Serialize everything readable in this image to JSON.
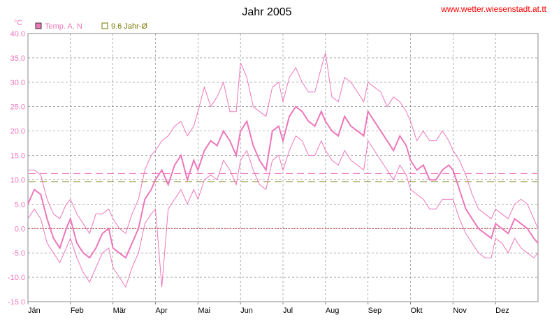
{
  "header": {
    "title": "Jahr 2005",
    "site": "www.wetter.wiesenstadt.at.tt"
  },
  "legend": [
    {
      "label": "Temp. A. N",
      "color": "#ee77bb",
      "swatch_fill": "#ee77bb"
    },
    {
      "label": "9.6 Jahr-Ø",
      "color": "#777700",
      "swatch_fill": "#ffffff"
    }
  ],
  "chart_data": {
    "type": "line",
    "title": "Jahr 2005",
    "ylabel": "°C",
    "xlabel": "",
    "ylim": [
      -15,
      40
    ],
    "yticks": [
      40.0,
      35.0,
      30.0,
      25.0,
      20.0,
      15.0,
      10.0,
      5.0,
      0.0,
      -5.0,
      -10.0,
      -15.0
    ],
    "ytick_labels": [
      "40.0",
      "35.0",
      "30.0",
      "25.0",
      "20.0",
      "15.0",
      "10.0",
      "5.0",
      "0.0",
      "-5.0",
      "-10.0",
      "-15.0"
    ],
    "months": [
      "Jän",
      "Feb",
      "Mär",
      "Apr",
      "Mai",
      "Jun",
      "Jul",
      "Aug",
      "Sep",
      "Okt",
      "Nov",
      "Dez"
    ],
    "grid": true,
    "legend_position": "top-left",
    "colors": {
      "series": "#ee77bb",
      "jahr_avg_line": "#777700",
      "upper_dash": "#ee77bb",
      "zero_line": "#bb3333",
      "grid": "#777777",
      "frame": "#888888"
    },
    "reference_lines": [
      {
        "name": "9.6 Jahr-Ø",
        "value": 9.6,
        "style": "dashed",
        "color": "#777700"
      },
      {
        "value": 11.3,
        "style": "dashed",
        "color": "#ee77bb"
      },
      {
        "value": 0.0,
        "style": "dotted",
        "color": "#bb3333"
      }
    ],
    "series": [
      {
        "name": "Temp. A. N",
        "color": "#ee77bb",
        "x_month": [
          0.0,
          0.15,
          0.3,
          0.45,
          0.6,
          0.75,
          0.9,
          1.0,
          1.15,
          1.3,
          1.45,
          1.6,
          1.75,
          1.9,
          2.0,
          2.15,
          2.3,
          2.45,
          2.6,
          2.75,
          2.9,
          3.0,
          3.15,
          3.3,
          3.45,
          3.6,
          3.75,
          3.9,
          4.0,
          4.15,
          4.3,
          4.45,
          4.6,
          4.75,
          4.9,
          5.0,
          5.15,
          5.3,
          5.45,
          5.6,
          5.75,
          5.9,
          6.0,
          6.15,
          6.3,
          6.45,
          6.6,
          6.75,
          6.9,
          7.0,
          7.15,
          7.3,
          7.45,
          7.6,
          7.75,
          7.9,
          8.0,
          8.15,
          8.3,
          8.45,
          8.6,
          8.75,
          8.9,
          9.0,
          9.15,
          9.3,
          9.45,
          9.6,
          9.75,
          9.9,
          10.0,
          10.15,
          10.3,
          10.45,
          10.6,
          10.75,
          10.9,
          11.0,
          11.15,
          11.3,
          11.45,
          11.6,
          11.75,
          11.9,
          12.0
        ],
        "mean": [
          5,
          8,
          7,
          2,
          -2,
          -4,
          0,
          2,
          -3,
          -5,
          -6,
          -4,
          -1,
          0,
          -4,
          -5,
          -6,
          -3,
          0,
          6,
          8,
          10,
          12,
          9,
          13,
          15,
          10,
          14,
          12,
          16,
          18,
          17,
          20,
          18,
          15,
          20,
          22,
          17,
          14,
          12,
          20,
          21,
          18,
          23,
          25,
          24,
          22,
          21,
          24,
          22,
          20,
          19,
          23,
          21,
          20,
          19,
          24,
          22,
          20,
          18,
          16,
          19,
          17,
          14,
          12,
          13,
          10,
          10,
          12,
          13,
          12,
          8,
          4,
          2,
          0,
          -1,
          -2,
          1,
          0,
          -1,
          2,
          1,
          0,
          -2,
          -3
        ],
        "max": [
          12,
          12,
          11,
          6,
          3,
          2,
          5,
          6,
          3,
          1,
          -1,
          3,
          3,
          4,
          2,
          0,
          -1,
          3,
          6,
          12,
          15,
          16,
          18,
          19,
          21,
          22,
          19,
          21,
          24,
          29,
          25,
          27,
          30,
          24,
          24,
          34,
          31,
          25,
          24,
          23,
          29,
          30,
          26,
          31,
          33,
          30,
          28,
          28,
          33,
          36,
          27,
          26,
          31,
          30,
          28,
          26,
          30,
          29,
          28,
          25,
          27,
          26,
          24,
          22,
          18,
          20,
          18,
          18,
          20,
          18,
          16,
          14,
          11,
          7,
          4,
          3,
          2,
          4,
          3,
          2,
          5,
          6,
          5,
          2,
          0
        ],
        "min": [
          2,
          4,
          2,
          -3,
          -5,
          -7,
          -4,
          -2,
          -6,
          -9,
          -11,
          -8,
          -5,
          -4,
          -8,
          -10,
          -12,
          -8,
          -5,
          1,
          3,
          4,
          -12,
          4,
          6,
          8,
          5,
          8,
          6,
          10,
          11,
          10,
          14,
          12,
          9,
          14,
          16,
          12,
          9,
          8,
          14,
          15,
          12,
          16,
          19,
          18,
          15,
          15,
          18,
          16,
          14,
          13,
          16,
          14,
          13,
          12,
          18,
          16,
          14,
          12,
          10,
          13,
          11,
          8,
          7,
          6,
          4,
          4,
          6,
          6,
          6,
          2,
          -1,
          -3,
          -5,
          -6,
          -6,
          -2,
          -3,
          -5,
          -2,
          -4,
          -5,
          -6,
          -5
        ]
      }
    ]
  }
}
